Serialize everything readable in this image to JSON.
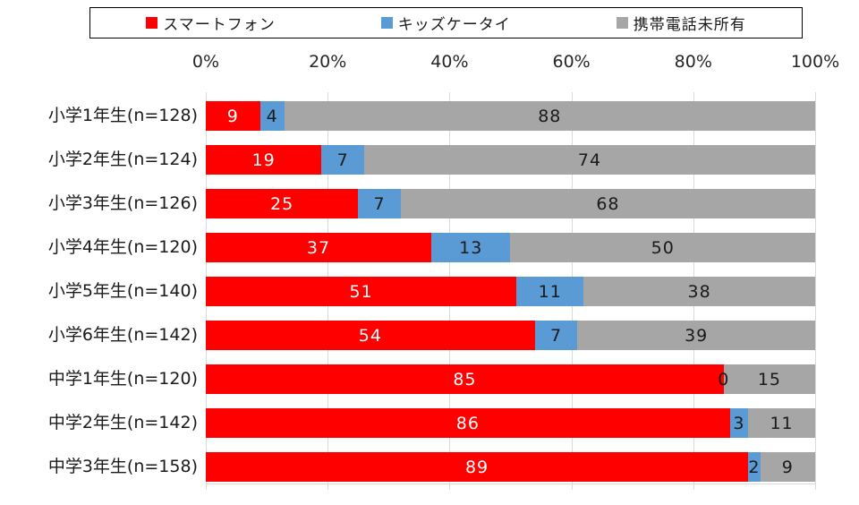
{
  "page": {
    "background": "#ffffff"
  },
  "chart_data": {
    "type": "bar",
    "orientation": "horizontal-stacked",
    "title": "",
    "xlabel": "",
    "ylabel": "",
    "xlim": [
      0,
      100
    ],
    "x_ticks": [
      "0%",
      "20%",
      "40%",
      "60%",
      "80%",
      "100%"
    ],
    "grid": true,
    "legend_position": "top",
    "categories": [
      "小学1年生(n=128)",
      "小学2年生(n=124)",
      "小学3年生(n=126)",
      "小学4年生(n=120)",
      "小学5年生(n=140)",
      "小学6年生(n=142)",
      "中学1年生(n=120)",
      "中学2年生(n=142)",
      "中学3年生(n=158)"
    ],
    "series": [
      {
        "key": "smartphone",
        "name": "スマートフォン",
        "color": "#fe0000",
        "label_color": "#ffffff",
        "values": [
          9,
          19,
          25,
          37,
          51,
          54,
          85,
          86,
          89
        ]
      },
      {
        "key": "kids-phone",
        "name": "キッズケータイ",
        "color": "#5b9bd5",
        "label_color": "#1a1a1a",
        "values": [
          4,
          7,
          7,
          13,
          11,
          7,
          0,
          3,
          2
        ]
      },
      {
        "key": "no-phone",
        "name": "携帯電話未所有",
        "color": "#a6a6a6",
        "label_color": "#1a1a1a",
        "values": [
          88,
          74,
          68,
          50,
          38,
          39,
          15,
          11,
          9
        ]
      }
    ],
    "colors": {
      "gridline": "#d9d9d9",
      "axis_line": "#d9d9d9",
      "tick_label": "#262626",
      "category_label": "#1a1a1a"
    }
  }
}
